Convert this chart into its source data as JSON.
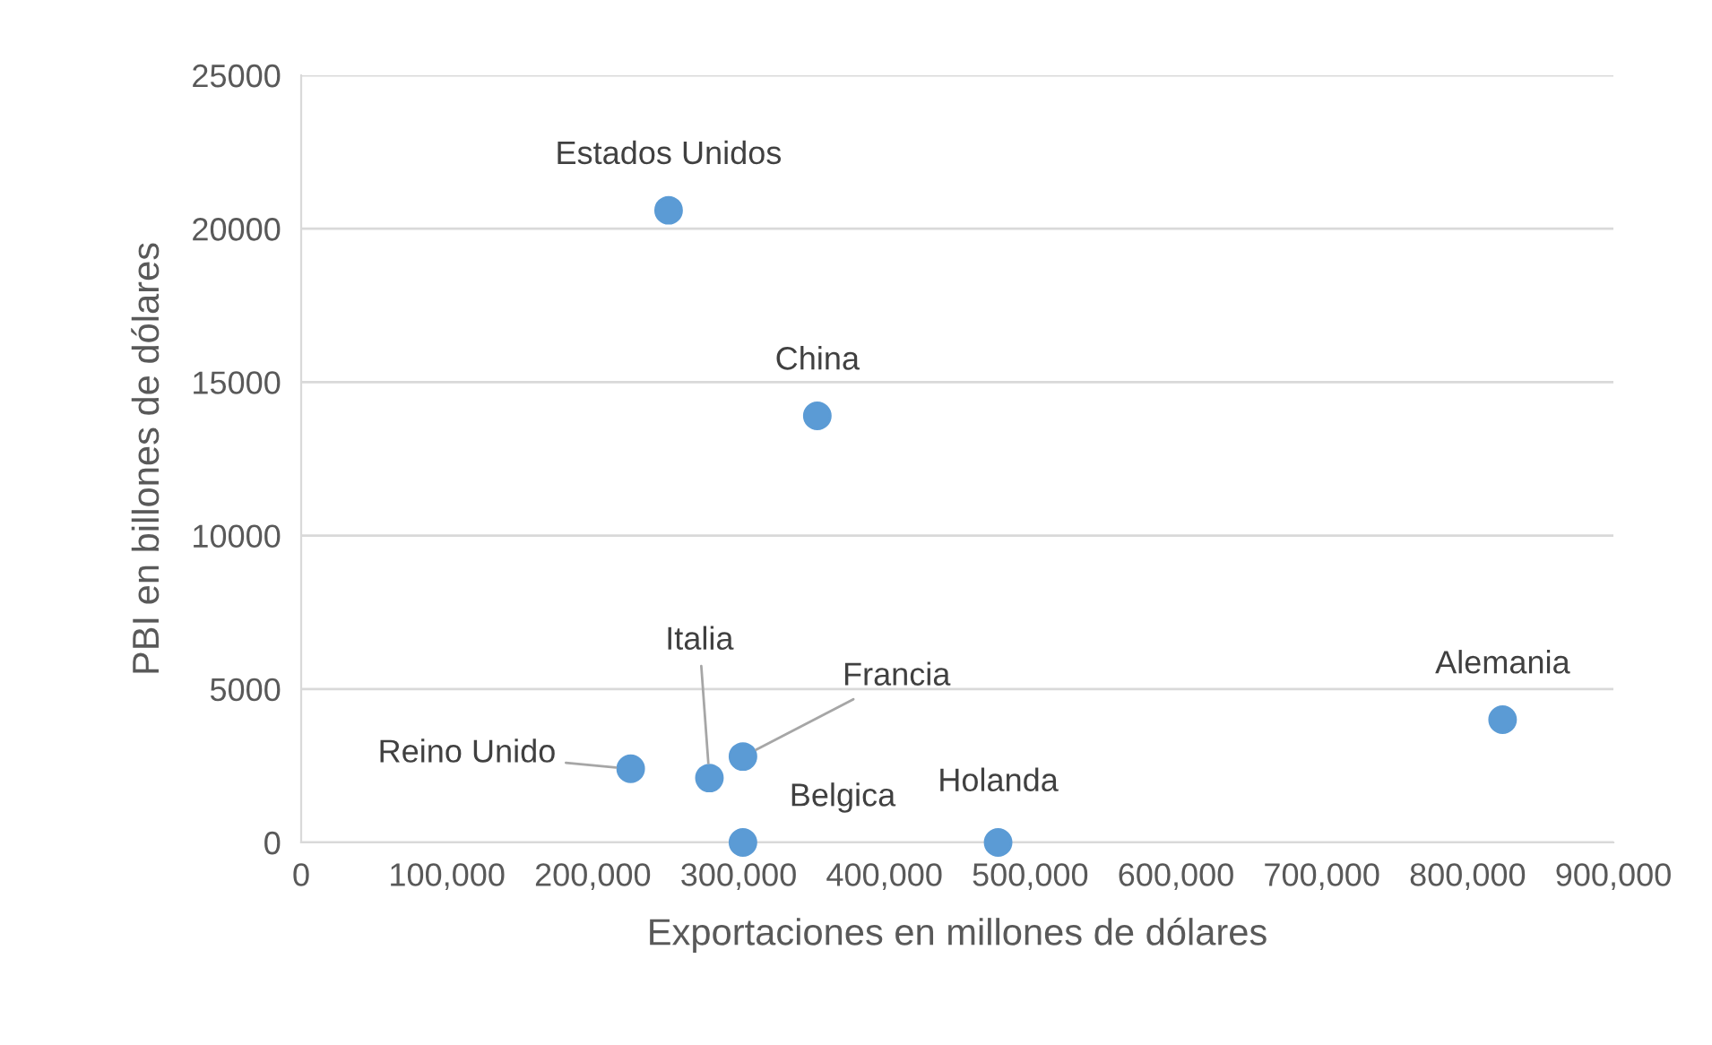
{
  "chart_data": {
    "type": "scatter",
    "xlabel": "Exportaciones en millones de dólares",
    "ylabel": "PBI en billones de dólares",
    "x": [
      252000,
      354000,
      226000,
      280000,
      303000,
      303000,
      478000,
      824000
    ],
    "series": [
      {
        "color": "#5b9bd5",
        "values": [
          20600,
          13900,
          2400,
          2100,
          2800,
          0,
          0,
          4000
        ]
      }
    ],
    "annotations": [
      {
        "text": "Estados Unidos",
        "x": 252000,
        "y": 20600
      },
      {
        "text": "China",
        "x": 354000,
        "y": 13900
      },
      {
        "text": "Reino Unido",
        "x": 226000,
        "y": 2400
      },
      {
        "text": "Italia",
        "x": 280000,
        "y": 2100
      },
      {
        "text": "Francia",
        "x": 303000,
        "y": 2800
      },
      {
        "text": "Belgica",
        "x": 303000,
        "y": 0
      },
      {
        "text": "Holanda",
        "x": 478000,
        "y": 0
      },
      {
        "text": "Alemania",
        "x": 824000,
        "y": 4000
      }
    ],
    "xlim": [
      0,
      900000
    ],
    "ylim": [
      0,
      25000
    ],
    "xticks": [
      0,
      {
        "value": 100000,
        "label": "100,000"
      },
      {
        "value": 200000,
        "label": "200,000"
      },
      {
        "value": 300000,
        "label": "300,000"
      },
      {
        "value": 400000,
        "label": "400,000"
      },
      {
        "value": 500000,
        "label": "500,000"
      },
      {
        "value": 600000,
        "label": "600,000"
      },
      {
        "value": 700000,
        "label": "700,000"
      },
      {
        "value": 800000,
        "label": "800,000"
      },
      {
        "value": 900000,
        "label": "900,000"
      }
    ],
    "yticks": [
      0,
      5000,
      10000,
      15000,
      20000,
      25000
    ],
    "grid": "y",
    "marker": "circle",
    "legend": false
  }
}
